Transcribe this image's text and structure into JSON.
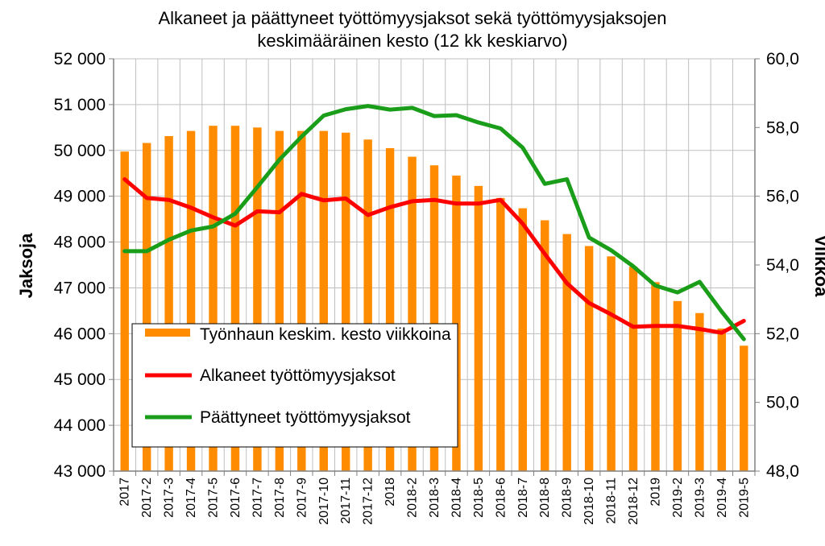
{
  "chart_data": {
    "type": "bar+line",
    "title_line1": "Alkaneet ja päättyneet työttömyysjaksot sekä työttömyysjaksojen",
    "title_line2": "keskimääräinen kesto (12 kk keskiarvo)",
    "ylabel_left": "Jaksoja",
    "ylabel_right": "Viikkoa",
    "ylim_left": [
      43000,
      52000
    ],
    "ylim_right": [
      48.0,
      60.0
    ],
    "yticks_left": [
      "43 000",
      "44 000",
      "45 000",
      "46 000",
      "47 000",
      "48 000",
      "49 000",
      "50 000",
      "51 000",
      "52 000"
    ],
    "yticks_right": [
      "48,0",
      "50,0",
      "52,0",
      "54,0",
      "56,0",
      "58,0",
      "60,0"
    ],
    "grid": true,
    "legend_position": "bottom-left inside",
    "categories": [
      "2017",
      "2017-2",
      "2017-3",
      "2017-4",
      "2017-5",
      "2017-6",
      "2017-7",
      "2017-8",
      "2017-9",
      "2017-10",
      "2017-11",
      "2017-12",
      "2018",
      "2018-2",
      "2018-3",
      "2018-4",
      "2018-5",
      "2018-6",
      "2018-7",
      "2018-8",
      "2018-9",
      "2018-10",
      "2018-11",
      "2018-12",
      "2019",
      "2019-2",
      "2019-3",
      "2019-4",
      "2019-5"
    ],
    "series": [
      {
        "name": "Työnhaun keskim. kesto viikkoina",
        "kind": "bar",
        "axis": "right",
        "color": "#FF8C00",
        "values": [
          57.3,
          57.55,
          57.75,
          57.9,
          58.05,
          58.05,
          58.0,
          57.9,
          57.9,
          57.9,
          57.85,
          57.65,
          57.4,
          57.15,
          56.9,
          56.6,
          56.3,
          55.95,
          55.65,
          55.3,
          54.9,
          54.55,
          54.25,
          53.95,
          53.5,
          52.95,
          52.6,
          52.15,
          51.65
        ]
      },
      {
        "name": "Alkaneet työttömyysjaksot",
        "kind": "line",
        "axis": "left",
        "color": "#FF0000",
        "values": [
          49370,
          48960,
          48920,
          48750,
          48540,
          48360,
          48670,
          48650,
          49050,
          48910,
          48950,
          48590,
          48760,
          48890,
          48920,
          48840,
          48840,
          48920,
          48400,
          47740,
          47100,
          46670,
          46420,
          46150,
          46170,
          46170,
          46100,
          46020,
          46280
        ]
      },
      {
        "name": "Päättyneet työttömyysjaksot",
        "kind": "line",
        "axis": "left",
        "color": "#1A9E1A",
        "values": [
          47800,
          47800,
          48050,
          48250,
          48340,
          48620,
          49200,
          49800,
          50300,
          50760,
          50900,
          50970,
          50890,
          50930,
          50750,
          50770,
          50610,
          50480,
          50060,
          49270,
          49370,
          48100,
          47820,
          47470,
          47050,
          46900,
          47130,
          46480,
          45880
        ]
      }
    ]
  },
  "colors": {
    "bar": "#FF8C00",
    "alkaneet": "#FF0000",
    "paattyneet": "#1A9E1A",
    "plot_background": "#FFFFFF",
    "grid": "#BFBFBF"
  }
}
